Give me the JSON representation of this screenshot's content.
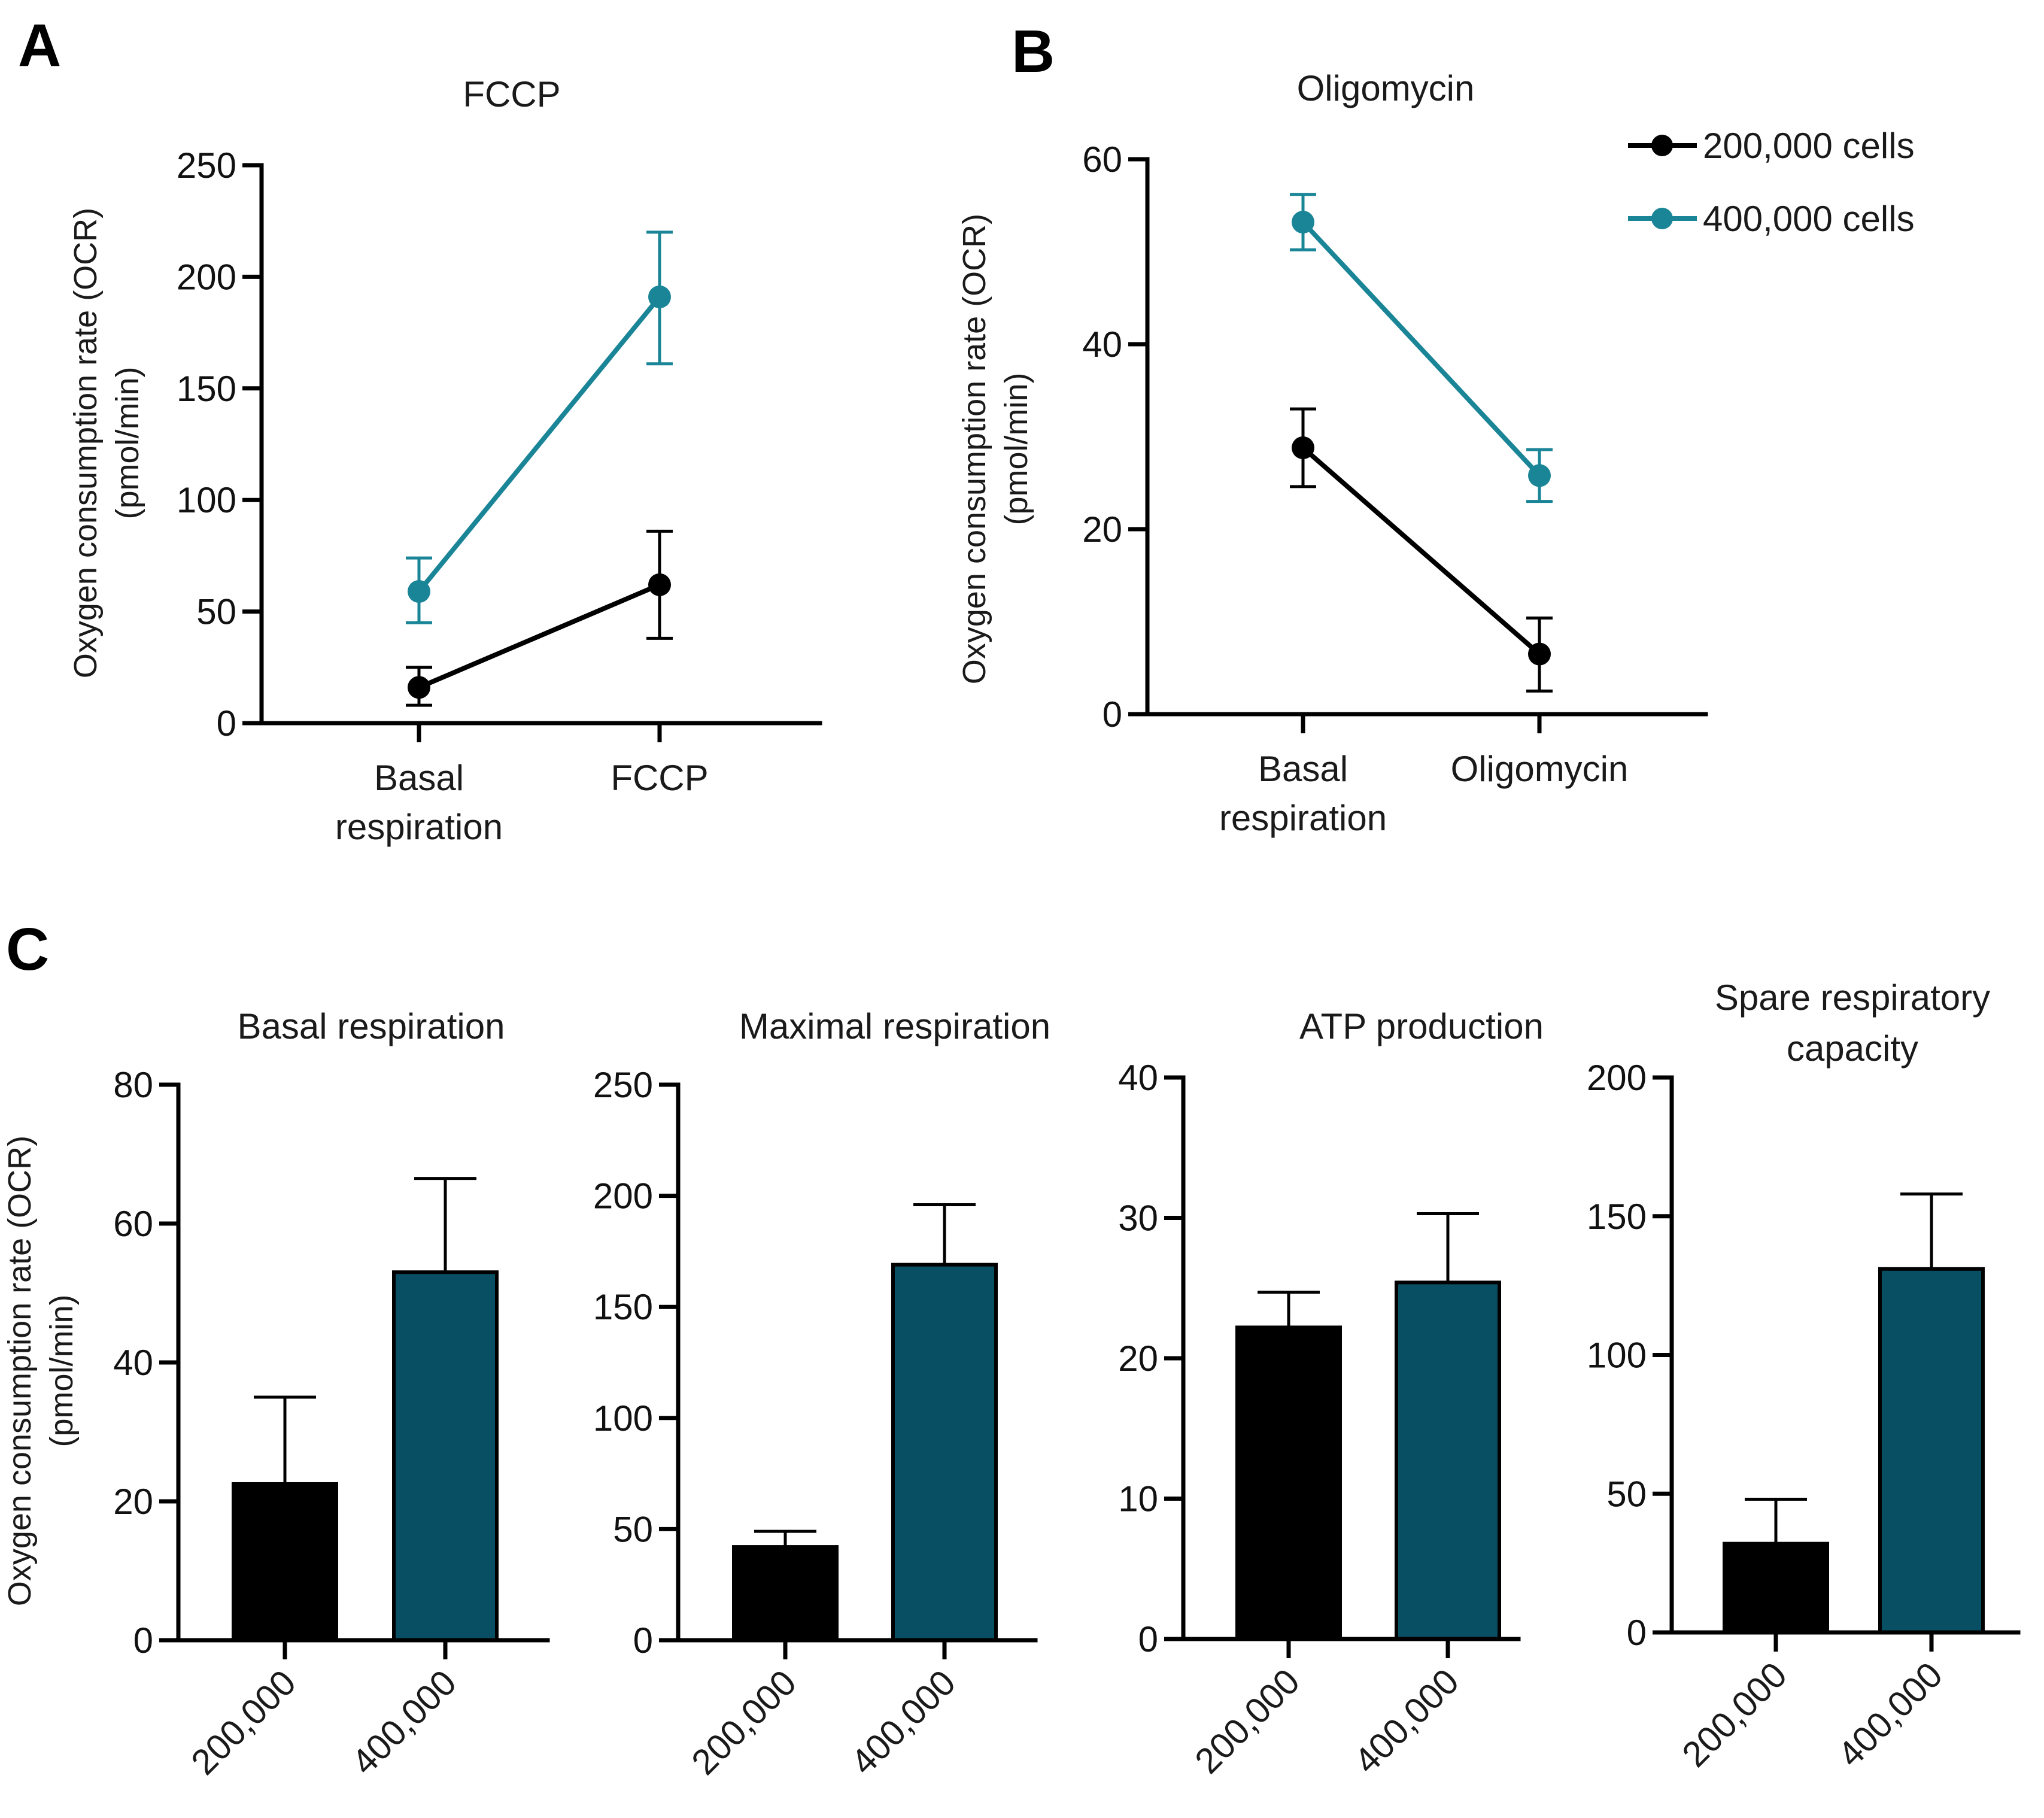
{
  "panels": {
    "a": "A",
    "b": "B",
    "c": "C"
  },
  "legend": {
    "items": [
      {
        "label": "200,000 cells",
        "color": "#000000"
      },
      {
        "label": "400,000 cells",
        "color": "#1a8597"
      }
    ]
  },
  "y_axis_label": {
    "line1": "Oxygen consumption rate (OCR)",
    "line2": "(pmol/min)"
  },
  "chart_data": [
    {
      "id": "A",
      "type": "line",
      "title": "FCCP",
      "categories": [
        [
          "Basal",
          "respiration"
        ],
        [
          "FCCP"
        ]
      ],
      "ylim": [
        0,
        250
      ],
      "yticks": [
        0,
        50,
        100,
        150,
        200,
        250
      ],
      "series": [
        {
          "name": "200,000 cells",
          "color": "#000000",
          "values": [
            16,
            62
          ],
          "errors": [
            [
              8,
              25
            ],
            [
              38,
              86
            ]
          ]
        },
        {
          "name": "400,000 cells",
          "color": "#1a8597",
          "values": [
            59,
            191
          ],
          "errors": [
            [
              45,
              74
            ],
            [
              161,
              220
            ]
          ]
        }
      ]
    },
    {
      "id": "B",
      "type": "line",
      "title": "Oligomycin",
      "categories": [
        [
          "Basal",
          "respiration"
        ],
        [
          "Oligomycin"
        ]
      ],
      "ylim": [
        0,
        60
      ],
      "yticks": [
        0,
        20,
        40,
        60
      ],
      "series": [
        {
          "name": "200,000 cells",
          "color": "#000000",
          "values": [
            28.8,
            6.5
          ],
          "errors": [
            [
              24.6,
              33.0
            ],
            [
              2.5,
              10.4
            ]
          ]
        },
        {
          "name": "400,000 cells",
          "color": "#1a8597",
          "values": [
            53.2,
            25.8
          ],
          "errors": [
            [
              50.2,
              56.2
            ],
            [
              23.0,
              28.6
            ]
          ]
        }
      ]
    },
    {
      "id": "C1",
      "type": "bar",
      "title": [
        "Basal respiration"
      ],
      "categories": [
        "200,000",
        "400,000"
      ],
      "colors": [
        "#000000",
        "#094f63"
      ],
      "values": [
        22.5,
        53
      ],
      "errors": [
        35,
        66.5
      ],
      "ylim": [
        0,
        80
      ],
      "yticks": [
        0,
        20,
        40,
        60,
        80
      ]
    },
    {
      "id": "C2",
      "type": "bar",
      "title": [
        "Maximal respiration"
      ],
      "categories": [
        "200,000",
        "400,000"
      ],
      "colors": [
        "#000000",
        "#094f63"
      ],
      "values": [
        42,
        169
      ],
      "errors": [
        49,
        196
      ],
      "ylim": [
        0,
        250
      ],
      "yticks": [
        0,
        50,
        100,
        150,
        200,
        250
      ]
    },
    {
      "id": "C3",
      "type": "bar",
      "title": [
        "ATP production"
      ],
      "categories": [
        "200,000",
        "400,000"
      ],
      "colors": [
        "#000000",
        "#094f63"
      ],
      "values": [
        22.2,
        25.4
      ],
      "errors": [
        24.7,
        30.3
      ],
      "ylim": [
        0,
        40
      ],
      "yticks": [
        0,
        10,
        20,
        30,
        40
      ]
    },
    {
      "id": "C4",
      "type": "bar",
      "title": [
        "Spare respiratory",
        "capacity"
      ],
      "categories": [
        "200,000",
        "400,000"
      ],
      "colors": [
        "#000000",
        "#094f63"
      ],
      "values": [
        32,
        131
      ],
      "errors": [
        48,
        158
      ],
      "ylim": [
        0,
        200
      ],
      "yticks": [
        0,
        50,
        100,
        150,
        200
      ]
    }
  ]
}
